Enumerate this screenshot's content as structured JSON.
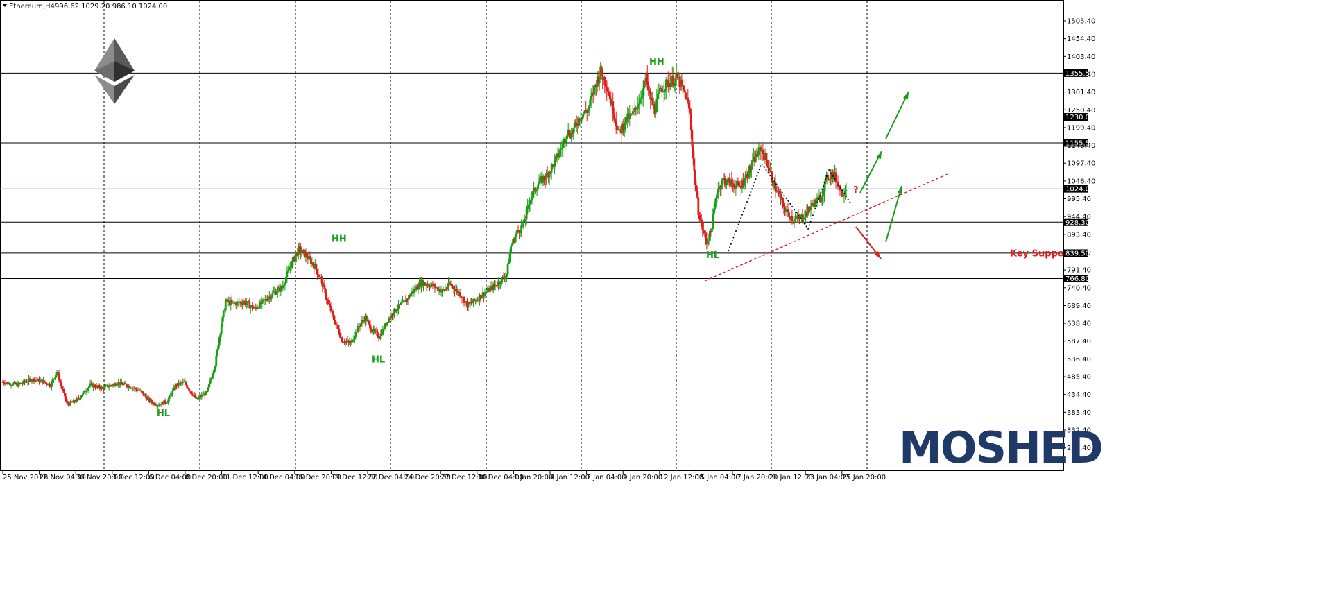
{
  "header": {
    "symbol": "Ethereum,H4",
    "ohlc": "996.62 1029.20 986.10 1024.00"
  },
  "logo": {
    "brand": "MOSHED",
    "icon": "ethereum-diamond-icon"
  },
  "colors": {
    "bull": "#16a016",
    "bear": "#e21b1b",
    "grid": "#000000",
    "current_price_line": "#9bb0cc",
    "brand": "#1f3a68"
  },
  "chart_data": {
    "type": "candlestick",
    "ylim": [
      255.0,
      1560.0
    ],
    "y_ticks": [
      "1505.40",
      "1454.40",
      "1403.40",
      "1352.40",
      "1301.40",
      "1250.40",
      "1199.40",
      "1148.40",
      "1097.40",
      "1046.40",
      "995.40",
      "944.40",
      "893.40",
      "842.40",
      "791.40",
      "740.40",
      "689.40",
      "638.40",
      "587.40",
      "536.40",
      "485.40",
      "434.40",
      "383.40",
      "332.40",
      "281.40"
    ],
    "x_labels": [
      "25 Nov 2017",
      "28 Nov 04:00",
      "30 Nov 20:00",
      "3 Dec 12:00",
      "6 Dec 04:00",
      "8 Dec 20:00",
      "11 Dec 12:00",
      "14 Dec 04:00",
      "16 Dec 20:00",
      "19 Dec 12:00",
      "22 Dec 04:00",
      "24 Dec 20:00",
      "27 Dec 12:00",
      "30 Dec 04:00",
      "1 Jan 20:00",
      "4 Jan 12:00",
      "7 Jan 04:00",
      "9 Jan 20:00",
      "12 Jan 12:00",
      "15 Jan 04:00",
      "17 Jan 20:00",
      "20 Jan 12:00",
      "23 Jan 04:00",
      "25 Jan 20:00"
    ],
    "levels": [
      {
        "price": 1355.5,
        "label": "1355.50"
      },
      {
        "price": 1230.0,
        "label": "1230.00"
      },
      {
        "price": 1155.5,
        "label": "1155.50"
      },
      {
        "price": 928.3,
        "label": "928.30"
      },
      {
        "price": 839.5,
        "label": "839.50"
      },
      {
        "price": 766.8,
        "label": "766.80"
      }
    ],
    "current_price": {
      "price": 1024.0,
      "label": "1024.00"
    },
    "candle_anchors": [
      [
        0,
        470
      ],
      [
        14,
        462
      ],
      [
        28,
        478
      ],
      [
        38,
        472
      ],
      [
        46,
        462
      ],
      [
        52,
        500
      ],
      [
        56,
        460
      ],
      [
        62,
        405
      ],
      [
        72,
        420
      ],
      [
        84,
        462
      ],
      [
        96,
        452
      ],
      [
        110,
        468
      ],
      [
        124,
        456
      ],
      [
        134,
        440
      ],
      [
        140,
        418
      ],
      [
        148,
        405
      ],
      [
        158,
        415
      ],
      [
        166,
        460
      ],
      [
        174,
        470
      ],
      [
        186,
        420
      ],
      [
        196,
        440
      ],
      [
        204,
        520
      ],
      [
        208,
        600
      ],
      [
        214,
        700
      ],
      [
        222,
        695
      ],
      [
        232,
        700
      ],
      [
        242,
        680
      ],
      [
        250,
        700
      ],
      [
        260,
        725
      ],
      [
        268,
        740
      ],
      [
        276,
        800
      ],
      [
        284,
        850
      ],
      [
        292,
        830
      ],
      [
        300,
        800
      ],
      [
        306,
        760
      ],
      [
        312,
        700
      ],
      [
        318,
        650
      ],
      [
        326,
        590
      ],
      [
        334,
        580
      ],
      [
        342,
        630
      ],
      [
        348,
        655
      ],
      [
        354,
        620
      ],
      [
        362,
        600
      ],
      [
        370,
        650
      ],
      [
        378,
        680
      ],
      [
        386,
        700
      ],
      [
        394,
        730
      ],
      [
        402,
        755
      ],
      [
        408,
        750
      ],
      [
        414,
        745
      ],
      [
        422,
        730
      ],
      [
        430,
        750
      ],
      [
        440,
        720
      ],
      [
        446,
        690
      ],
      [
        452,
        700
      ],
      [
        460,
        720
      ],
      [
        470,
        740
      ],
      [
        478,
        760
      ],
      [
        484,
        780
      ],
      [
        488,
        860
      ],
      [
        494,
        900
      ],
      [
        500,
        920
      ],
      [
        506,
        990
      ],
      [
        514,
        1040
      ],
      [
        522,
        1060
      ],
      [
        530,
        1100
      ],
      [
        538,
        1150
      ],
      [
        542,
        1190
      ],
      [
        546,
        1180
      ],
      [
        554,
        1230
      ],
      [
        562,
        1250
      ],
      [
        570,
        1330
      ],
      [
        574,
        1360
      ],
      [
        580,
        1320
      ],
      [
        586,
        1250
      ],
      [
        592,
        1180
      ],
      [
        598,
        1220
      ],
      [
        606,
        1240
      ],
      [
        614,
        1300
      ],
      [
        618,
        1340
      ],
      [
        620,
        1300
      ],
      [
        626,
        1250
      ],
      [
        632,
        1310
      ],
      [
        640,
        1330
      ],
      [
        648,
        1340
      ],
      [
        652,
        1315
      ],
      [
        656,
        1290
      ],
      [
        660,
        1240
      ],
      [
        664,
        1070
      ],
      [
        668,
        960
      ],
      [
        672,
        910
      ],
      [
        676,
        870
      ],
      [
        680,
        900
      ],
      [
        686,
        1020
      ],
      [
        692,
        1050
      ],
      [
        700,
        1040
      ],
      [
        708,
        1030
      ],
      [
        716,
        1070
      ],
      [
        722,
        1110
      ],
      [
        728,
        1140
      ],
      [
        734,
        1100
      ],
      [
        740,
        1040
      ],
      [
        746,
        1000
      ],
      [
        752,
        960
      ],
      [
        758,
        940
      ],
      [
        764,
        935
      ],
      [
        770,
        950
      ],
      [
        778,
        980
      ],
      [
        786,
        1000
      ],
      [
        792,
        1060
      ],
      [
        798,
        1065
      ],
      [
        802,
        1040
      ],
      [
        806,
        1010
      ],
      [
        810,
        1028
      ]
    ],
    "annotations": [
      {
        "text": "HH",
        "x": 478,
        "price": 872,
        "color": "green"
      },
      {
        "text": "HL",
        "x": 536,
        "price": 526,
        "color": "green"
      },
      {
        "text": "HL",
        "x": 226,
        "price": 372,
        "color": "green"
      },
      {
        "text": "HH",
        "x": 936,
        "price": 1380,
        "color": "green"
      },
      {
        "text": "HL",
        "x": 1018,
        "price": 825,
        "color": "green"
      },
      {
        "text": "Key Support",
        "x": 1456,
        "price": 830,
        "color": "red"
      },
      {
        "text": "?",
        "x": 1230,
        "price": 1012,
        "color": "red"
      }
    ]
  }
}
